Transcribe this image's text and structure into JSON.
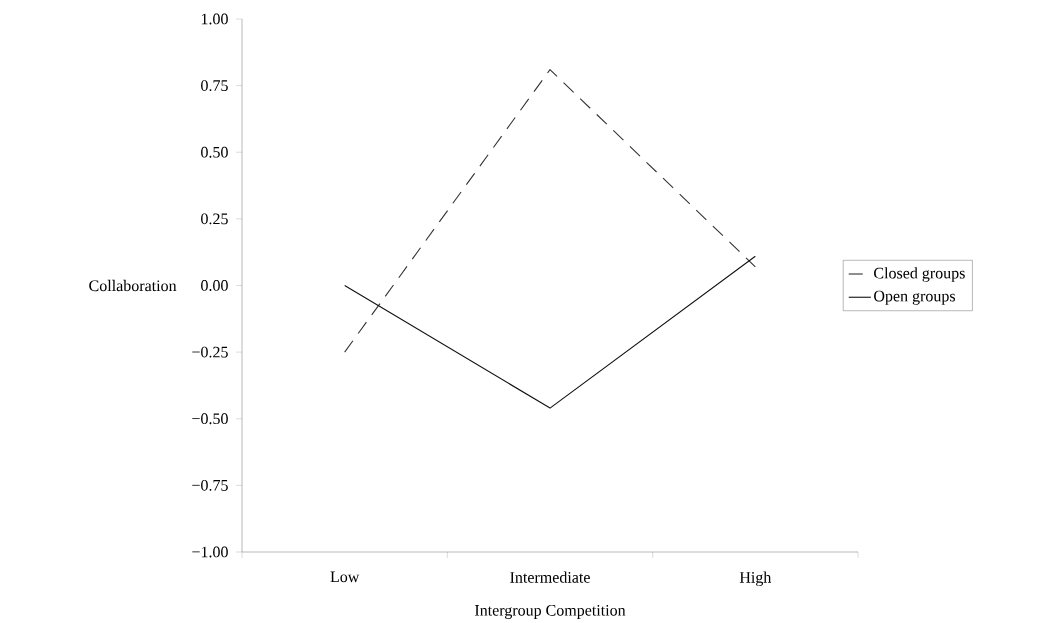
{
  "chart_data": {
    "type": "line",
    "xlabel": "Intergroup Competition",
    "ylabel": "Collaboration",
    "categories": [
      "Low",
      "Intermediate",
      "High"
    ],
    "series": [
      {
        "name": "Closed groups",
        "color": "#333333",
        "line_style": "dashed",
        "values": [
          -0.25,
          0.81,
          0.07
        ]
      },
      {
        "name": "Open groups",
        "color": "#111111",
        "line_style": "solid",
        "values": [
          0.0,
          -0.46,
          0.11
        ]
      }
    ],
    "ylim": [
      -1.0,
      1.0
    ],
    "yticks": [
      {
        "value": -1.0,
        "label": "−1.00"
      },
      {
        "value": -0.75,
        "label": "−0.75"
      },
      {
        "value": -0.5,
        "label": "−0.50"
      },
      {
        "value": -0.25,
        "label": "−0.25"
      },
      {
        "value": 0.0,
        "label": "0.00"
      },
      {
        "value": 0.25,
        "label": "0.25"
      },
      {
        "value": 0.5,
        "label": "0.50"
      },
      {
        "value": 0.75,
        "label": "0.75"
      },
      {
        "value": 1.0,
        "label": "1.00"
      }
    ],
    "legend": "right",
    "grid": false,
    "marker": "none"
  }
}
